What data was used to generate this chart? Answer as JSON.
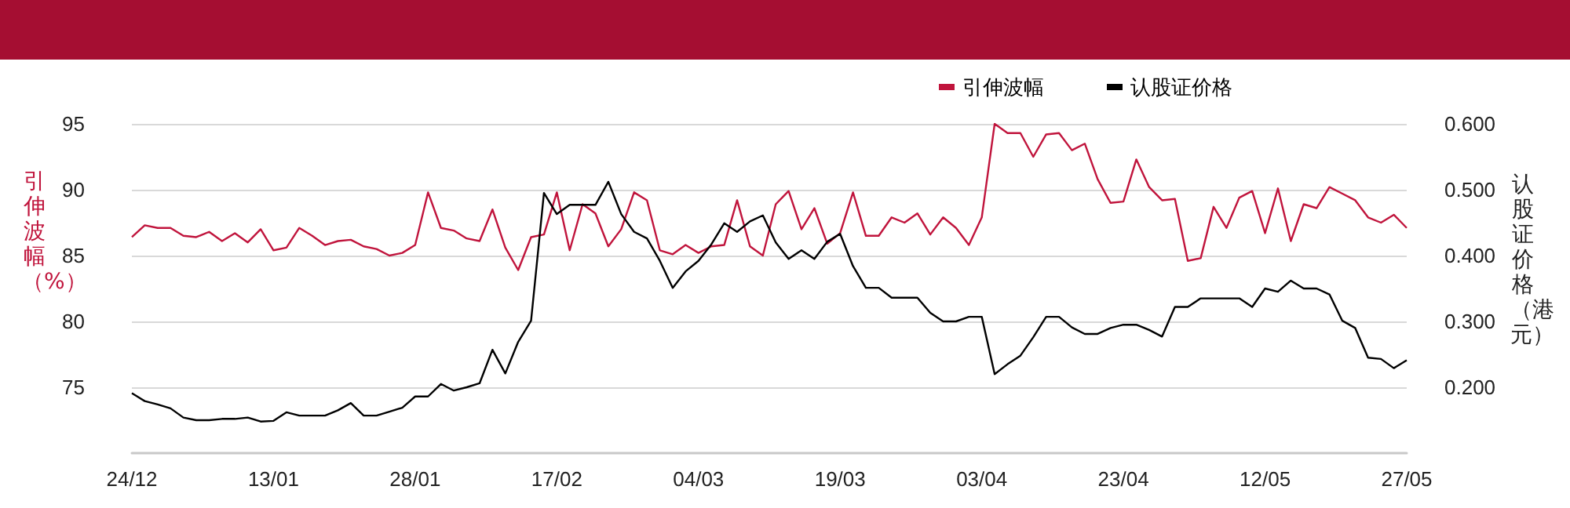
{
  "chart_data": {
    "type": "line",
    "ylabel": "引伸波幅（%）",
    "y2label": "认股证价格（港元）",
    "categories": [
      "24/12",
      null,
      null,
      null,
      null,
      null,
      null,
      null,
      null,
      null,
      null,
      "13/01",
      null,
      null,
      null,
      null,
      null,
      null,
      null,
      null,
      null,
      null,
      "28/01",
      null,
      null,
      null,
      null,
      null,
      null,
      null,
      null,
      null,
      null,
      "17/02",
      null,
      null,
      null,
      null,
      null,
      null,
      null,
      null,
      null,
      null,
      "04/03",
      null,
      null,
      null,
      null,
      null,
      null,
      null,
      null,
      null,
      null,
      "19/03",
      null,
      null,
      null,
      null,
      null,
      null,
      null,
      null,
      null,
      null,
      "03/04",
      null,
      null,
      null,
      null,
      null,
      null,
      null,
      null,
      null,
      null,
      "23/04",
      null,
      null,
      null,
      null,
      null,
      null,
      null,
      null,
      null,
      null,
      "12/05",
      null,
      null,
      null,
      null,
      null,
      null,
      null,
      null,
      null,
      null,
      "27/05"
    ],
    "series": [
      {
        "name": "引伸波幅",
        "color": "#c0143c",
        "values": [
          86.4,
          87.3,
          87.1,
          87.1,
          86.5,
          86.4,
          86.8,
          86.1,
          86.7,
          86.0,
          87.0,
          85.4,
          85.6,
          87.1,
          86.5,
          85.8,
          86.1,
          86.2,
          85.7,
          85.5,
          85.0,
          85.2,
          85.8,
          89.8,
          87.1,
          86.9,
          86.3,
          86.1,
          88.5,
          85.6,
          83.9,
          86.4,
          86.6,
          89.8,
          85.4,
          88.9,
          88.2,
          85.7,
          87.0,
          89.8,
          89.2,
          85.4,
          85.1,
          85.8,
          85.2,
          85.7,
          85.8,
          89.2,
          85.7,
          85.0,
          88.9,
          89.9,
          87.0,
          88.6,
          85.9,
          86.7,
          89.8,
          86.5,
          86.5,
          87.9,
          87.5,
          88.2,
          86.6,
          87.9,
          87.1,
          85.8,
          87.9,
          95.0,
          94.3,
          94.3,
          92.5,
          94.2,
          94.3,
          93.0,
          93.5,
          90.8,
          89.0,
          89.1,
          92.3,
          90.2,
          89.2,
          89.3,
          84.6,
          84.8,
          88.7,
          87.1,
          89.4,
          89.9,
          86.7,
          90.1,
          86.1,
          88.9,
          88.6,
          90.2,
          89.7,
          89.2,
          87.9,
          87.5,
          88.1,
          87.1
        ]
      },
      {
        "name": "认股证价格",
        "color": "#000000",
        "axis": "y2",
        "values": [
          0.191,
          0.179,
          0.174,
          0.168,
          0.154,
          0.15,
          0.15,
          0.152,
          0.152,
          0.154,
          0.148,
          0.149,
          0.162,
          0.157,
          0.157,
          0.157,
          0.165,
          0.176,
          0.157,
          0.157,
          0.163,
          0.169,
          0.186,
          0.186,
          0.205,
          0.195,
          0.2,
          0.206,
          0.257,
          0.221,
          0.269,
          0.301,
          0.495,
          0.463,
          0.477,
          0.477,
          0.477,
          0.512,
          0.463,
          0.436,
          0.426,
          0.392,
          0.351,
          0.376,
          0.392,
          0.417,
          0.449,
          0.436,
          0.452,
          0.461,
          0.42,
          0.395,
          0.408,
          0.395,
          0.421,
          0.433,
          0.384,
          0.351,
          0.351,
          0.336,
          0.336,
          0.336,
          0.313,
          0.3,
          0.3,
          0.307,
          0.307,
          0.22,
          0.235,
          0.248,
          0.276,
          0.307,
          0.307,
          0.291,
          0.281,
          0.281,
          0.29,
          0.295,
          0.295,
          0.287,
          0.277,
          0.322,
          0.322,
          0.335,
          0.335,
          0.335,
          0.335,
          0.322,
          0.35,
          0.345,
          0.362,
          0.35,
          0.35,
          0.341,
          0.301,
          0.29,
          0.245,
          0.243,
          0.229,
          0.241
        ]
      }
    ],
    "ylim": [
      70,
      95
    ],
    "yticks": [
      75,
      80,
      85,
      90,
      95
    ],
    "y2lim": [
      0.1,
      0.6
    ],
    "y2ticks": [
      {
        "value": 0.2,
        "label": "0.200"
      },
      {
        "value": 0.3,
        "label": "0.300"
      },
      {
        "value": 0.4,
        "label": "0.400"
      },
      {
        "value": 0.5,
        "label": "0.500"
      },
      {
        "value": 0.6,
        "label": "0.600"
      }
    ],
    "grid": "y",
    "legend": "top right",
    "marker": "none",
    "line_style": "solid"
  }
}
